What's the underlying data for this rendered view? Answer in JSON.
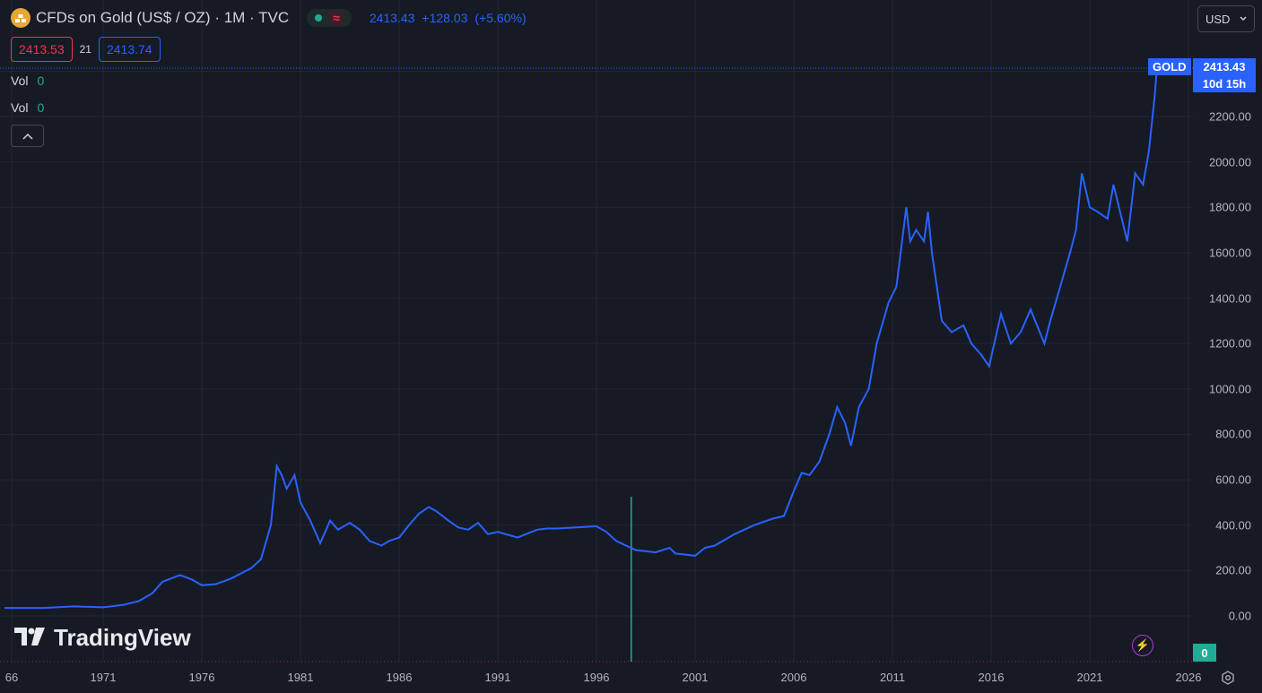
{
  "header": {
    "symbol_title": "CFDs on Gold (US$ / OZ) · 1M · TVC",
    "last_price": "2413.43",
    "change": "+128.03",
    "change_pct": "(+5.60%)",
    "sell_price": "2413.53",
    "spread": "21",
    "buy_price": "2413.74",
    "logo_icon": "gold-bars-icon"
  },
  "indicators": [
    {
      "label": "Vol",
      "value": "0"
    },
    {
      "label": "Vol",
      "value": "0"
    }
  ],
  "currency": {
    "label": "USD",
    "icon": "chevron-down-icon"
  },
  "price_axis": {
    "ticks": [
      "2200.00",
      "2000.00",
      "1800.00",
      "1600.00",
      "1400.00",
      "1200.00",
      "1000.00",
      "800.00",
      "600.00",
      "400.00",
      "200.00",
      "0.00"
    ],
    "symbol_label": "GOLD",
    "last_price": "2413.43",
    "countdown": "10d 15h",
    "volume_label": "0"
  },
  "time_axis": {
    "ticks": [
      "66",
      "1971",
      "1976",
      "1981",
      "1986",
      "1991",
      "1996",
      "2001",
      "2006",
      "2011",
      "2016",
      "2021",
      "2026"
    ]
  },
  "watermark": {
    "text": "TradingView"
  },
  "colors": {
    "background": "#161a25",
    "line": "#2962ff",
    "up": "#22ab94",
    "down": "#f23645",
    "grid": "#232632"
  },
  "chart_data": {
    "type": "line",
    "series": [
      {
        "name": "GOLD",
        "x": [
          1966.0,
          1968.0,
          1969.5,
          1971.0,
          1972.0,
          1972.8,
          1973.5,
          1974.0,
          1974.9,
          1975.5,
          1976.0,
          1976.7,
          1977.5,
          1978.5,
          1979.0,
          1979.5,
          1979.8,
          1980.05,
          1980.3,
          1980.7,
          1981.0,
          1981.5,
          1982.0,
          1982.5,
          1982.9,
          1983.5,
          1984.0,
          1984.5,
          1985.1,
          1985.5,
          1986.0,
          1986.5,
          1987.0,
          1987.5,
          1987.9,
          1988.5,
          1989.0,
          1989.5,
          1990.0,
          1990.5,
          1991.0,
          1992.0,
          1993.0,
          1993.5,
          1994.0,
          1995.0,
          1996.0,
          1996.5,
          1997.0,
          1998.0,
          1999.0,
          1999.7,
          2000.0,
          2001.0,
          2001.5,
          2002.0,
          2003.0,
          2004.0,
          2005.0,
          2005.5,
          2006.0,
          2006.4,
          2006.8,
          2007.3,
          2007.8,
          2008.2,
          2008.6,
          2008.9,
          2009.3,
          2009.8,
          2010.2,
          2010.8,
          2011.2,
          2011.7,
          2011.9,
          2012.2,
          2012.6,
          2012.8,
          2013.0,
          2013.5,
          2014.0,
          2014.6,
          2015.0,
          2015.5,
          2015.9,
          2016.5,
          2017.0,
          2017.5,
          2018.0,
          2018.7,
          2019.0,
          2019.5,
          2020.0,
          2020.3,
          2020.6,
          2021.0,
          2021.4,
          2021.9,
          2022.2,
          2022.9,
          2023.3,
          2023.7,
          2024.0,
          2024.3,
          2024.4
        ],
        "values": [
          35,
          35,
          42,
          38,
          48,
          65,
          100,
          150,
          180,
          160,
          135,
          140,
          165,
          210,
          250,
          400,
          660,
          620,
          560,
          620,
          500,
          420,
          320,
          420,
          380,
          410,
          380,
          330,
          310,
          330,
          345,
          400,
          450,
          480,
          460,
          420,
          390,
          380,
          410,
          360,
          370,
          345,
          380,
          385,
          385,
          390,
          395,
          370,
          330,
          290,
          280,
          300,
          275,
          265,
          300,
          310,
          360,
          400,
          430,
          440,
          550,
          630,
          620,
          680,
          800,
          920,
          850,
          750,
          920,
          1000,
          1200,
          1380,
          1450,
          1800,
          1650,
          1700,
          1650,
          1780,
          1600,
          1300,
          1250,
          1280,
          1200,
          1150,
          1100,
          1330,
          1200,
          1250,
          1350,
          1200,
          1300,
          1450,
          1600,
          1700,
          1950,
          1800,
          1780,
          1750,
          1900,
          1650,
          1950,
          1900,
          2050,
          2300,
          2413.43
        ]
      },
      {
        "name": "Vol",
        "type": "bar",
        "x": [
          1997.75
        ],
        "values": [
          0
        ]
      }
    ],
    "xlabel": "",
    "ylabel": "",
    "ylim": [
      0,
      2400
    ],
    "xlim": [
      1966,
      2026
    ],
    "grid": true,
    "annotations": [
      "GOLD 2413.43",
      "10d 15h"
    ]
  }
}
